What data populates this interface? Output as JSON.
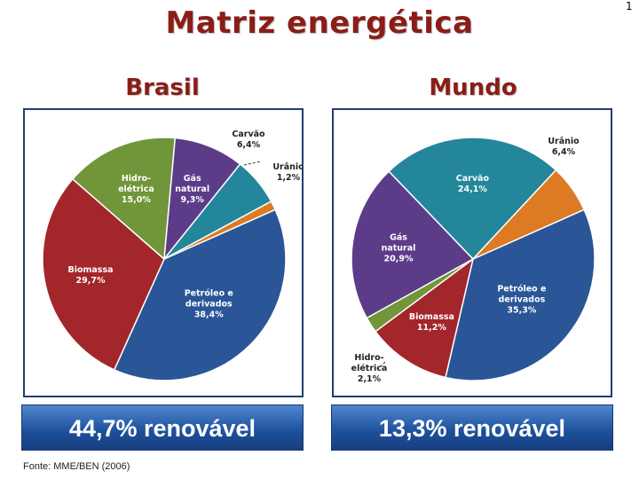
{
  "title": "Matriz energética",
  "source": "Fonte: MME/BEN (2006)",
  "corner_mark": "1",
  "colors": {
    "title": "#8a1d17",
    "petroleo": "#2a5597",
    "biomassa": "#a3262b",
    "hidro": "#71963a",
    "gas": "#5c3c88",
    "carvao": "#23869b",
    "uranio": "#dd7a24",
    "banner": "#1d4f9a"
  },
  "chart_data": [
    {
      "type": "pie",
      "title": "Brasil",
      "summary": "44,7% renovável",
      "slices": [
        {
          "key": "petroleo",
          "label_lines": [
            "Petróleo e",
            "derivados",
            "38,4%"
          ],
          "value": 38.4,
          "color": "#2a5597",
          "label_color": "#ffffff",
          "outside": false
        },
        {
          "key": "biomassa",
          "label_lines": [
            "Biomassa",
            "29,7%"
          ],
          "value": 29.7,
          "color": "#a3262b",
          "label_color": "#ffffff",
          "outside": false
        },
        {
          "key": "hidro",
          "label_lines": [
            "Hidro-",
            "elétrica",
            "15,0%"
          ],
          "value": 15.0,
          "color": "#71963a",
          "label_color": "#ffffff",
          "outside": false
        },
        {
          "key": "gas",
          "label_lines": [
            "Gás",
            "natural",
            "9,3%"
          ],
          "value": 9.3,
          "color": "#5c3c88",
          "label_color": "#ffffff",
          "outside": false
        },
        {
          "key": "carvao",
          "label_lines": [
            "Carvão",
            "6,4%"
          ],
          "value": 6.4,
          "color": "#23869b",
          "label_color": "#222222",
          "outside": true
        },
        {
          "key": "uranio",
          "label_lines": [
            "Urânio",
            "1,2%"
          ],
          "value": 1.2,
          "color": "#dd7a24",
          "label_color": "#222222",
          "outside": true
        }
      ]
    },
    {
      "type": "pie",
      "title": "Mundo",
      "summary": "13,3% renovável",
      "slices": [
        {
          "key": "petroleo",
          "label_lines": [
            "Petróleo e",
            "derivados",
            "35,3%"
          ],
          "value": 35.3,
          "color": "#2a5597",
          "label_color": "#ffffff",
          "outside": false
        },
        {
          "key": "biomassa",
          "label_lines": [
            "Biomassa",
            "11,2%"
          ],
          "value": 11.2,
          "color": "#a3262b",
          "label_color": "#ffffff",
          "outside": false
        },
        {
          "key": "hidro",
          "label_lines": [
            "Hidro-",
            "elétrica",
            "2,1%"
          ],
          "value": 2.1,
          "color": "#71963a",
          "label_color": "#222222",
          "outside": true
        },
        {
          "key": "gas",
          "label_lines": [
            "Gás",
            "natural",
            "20,9%"
          ],
          "value": 20.9,
          "color": "#5c3c88",
          "label_color": "#ffffff",
          "outside": false
        },
        {
          "key": "carvao",
          "label_lines": [
            "Carvão",
            "24,1%"
          ],
          "value": 24.1,
          "color": "#23869b",
          "label_color": "#ffffff",
          "outside": false
        },
        {
          "key": "uranio",
          "label_lines": [
            "Urânio",
            "6,4%"
          ],
          "value": 6.4,
          "color": "#dd7a24",
          "label_color": "#222222",
          "outside": true
        }
      ]
    }
  ]
}
